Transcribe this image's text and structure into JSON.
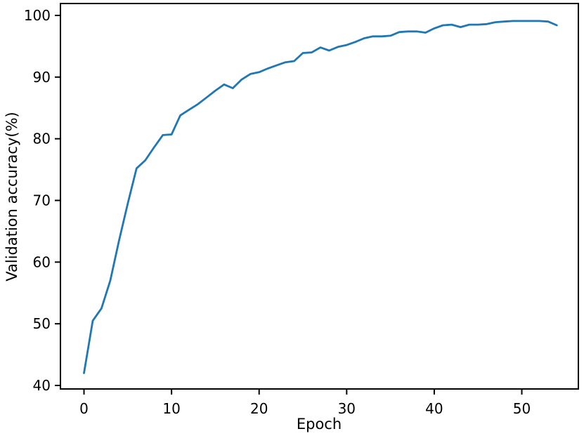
{
  "chart_data": {
    "type": "line",
    "title": "",
    "xlabel": "Epoch",
    "ylabel": "Validation accuracy(%)",
    "x": [
      0,
      1,
      2,
      3,
      4,
      5,
      6,
      7,
      8,
      9,
      10,
      11,
      12,
      13,
      14,
      15,
      16,
      17,
      18,
      19,
      20,
      21,
      22,
      23,
      24,
      25,
      26,
      27,
      28,
      29,
      30,
      31,
      32,
      33,
      34,
      35,
      36,
      37,
      38,
      39,
      40,
      41,
      42,
      43,
      44,
      45,
      46,
      47,
      48,
      49,
      50,
      51,
      52,
      53,
      54
    ],
    "series": [
      {
        "name": "validation accuracy",
        "color": "#1f77b4",
        "values": [
          42.0,
          50.5,
          52.5,
          57.0,
          63.5,
          69.5,
          75.2,
          76.5,
          78.6,
          80.6,
          80.7,
          83.8,
          84.7,
          85.6,
          86.7,
          87.8,
          88.8,
          88.2,
          89.6,
          90.5,
          90.8,
          91.4,
          91.9,
          92.4,
          92.6,
          93.9,
          94.0,
          94.8,
          94.3,
          94.9,
          95.2,
          95.7,
          96.3,
          96.6,
          96.6,
          96.7,
          97.3,
          97.4,
          97.4,
          97.2,
          97.9,
          98.4,
          98.5,
          98.1,
          98.5,
          98.5,
          98.6,
          98.9,
          99.0,
          99.1,
          99.1,
          99.1,
          99.1,
          99.0,
          98.4
        ]
      }
    ],
    "xticks": [
      0,
      10,
      20,
      30,
      40,
      50
    ],
    "yticks": [
      40,
      50,
      60,
      70,
      80,
      90,
      100
    ],
    "xlim": [
      -2.69,
      56.46
    ],
    "ylim": [
      39.43,
      101.93
    ],
    "grid": false,
    "legend": "none",
    "axis_color": "#000000",
    "background_color": "#ffffff"
  }
}
